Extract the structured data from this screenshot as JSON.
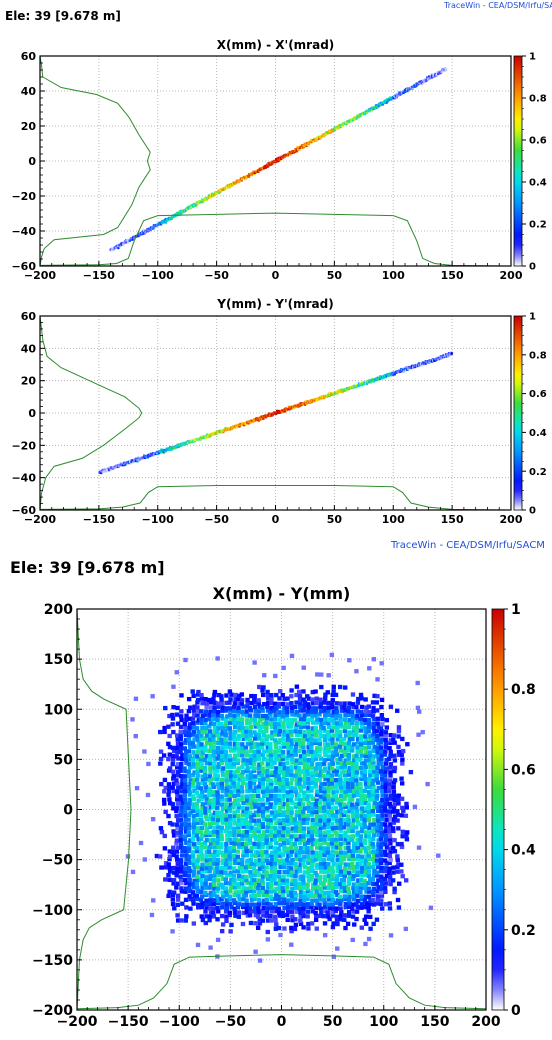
{
  "header": {
    "watermark_top": "TraceWin - CEA/DSM/Irfu/SACM",
    "element_top": "Ele: 39 [9.678 m]",
    "watermark_mid": "TraceWin - CEA/DSM/Irfu/SACM",
    "element_bottom": "Ele: 39 [9.678 m]"
  },
  "colors": {
    "hist_line": "#2e8b2e",
    "grid": "#b8b8b8",
    "watermark": "#1e4fd8"
  },
  "colorbar_ticks": [
    "0",
    "0.2",
    "0.4",
    "0.6",
    "0.8",
    "1"
  ],
  "chart_data": [
    {
      "type": "heatmap",
      "title": "X(mm) - X'(mrad)",
      "xlim": [
        -200,
        200
      ],
      "ylim": [
        -60,
        60
      ],
      "x_ticks": [
        -200,
        -150,
        -100,
        -50,
        0,
        50,
        100,
        150,
        200
      ],
      "y_ticks": [
        -60,
        -40,
        -20,
        0,
        20,
        40,
        60
      ],
      "colorbar_range": [
        0,
        1
      ],
      "grid": true,
      "line": {
        "x_start": -140,
        "x_end": 145,
        "slope": 0.364
      },
      "profile_x": [
        [
          -200,
          0.01
        ],
        [
          -150,
          0.02
        ],
        [
          -135,
          0.04
        ],
        [
          -125,
          0.12
        ],
        [
          -120,
          0.4
        ],
        [
          -112,
          0.72
        ],
        [
          -100,
          0.8
        ],
        [
          -50,
          0.82
        ],
        [
          0,
          0.84
        ],
        [
          50,
          0.82
        ],
        [
          100,
          0.8
        ],
        [
          112,
          0.72
        ],
        [
          120,
          0.4
        ],
        [
          125,
          0.12
        ],
        [
          135,
          0.04
        ],
        [
          150,
          0.01
        ],
        [
          200,
          0
        ]
      ],
      "profile_y": [
        [
          -60,
          0
        ],
        [
          -55,
          0.01
        ],
        [
          -50,
          0.03
        ],
        [
          -45,
          0.1
        ],
        [
          -42,
          0.45
        ],
        [
          -38,
          0.55
        ],
        [
          -25,
          0.65
        ],
        [
          -15,
          0.7
        ],
        [
          -5,
          0.78
        ],
        [
          0,
          0.76
        ],
        [
          5,
          0.78
        ],
        [
          15,
          0.7
        ],
        [
          25,
          0.63
        ],
        [
          33,
          0.55
        ],
        [
          38,
          0.4
        ],
        [
          42,
          0.15
        ],
        [
          48,
          0.02
        ],
        [
          55,
          0.01
        ],
        [
          60,
          0
        ]
      ]
    },
    {
      "type": "heatmap",
      "title": "Y(mm) - Y'(mrad)",
      "xlim": [
        -200,
        200
      ],
      "ylim": [
        -60,
        60
      ],
      "x_ticks": [
        -200,
        -150,
        -100,
        -50,
        0,
        50,
        100,
        150,
        200
      ],
      "y_ticks": [
        -60,
        -40,
        -20,
        0,
        20,
        40,
        60
      ],
      "colorbar_range": [
        0,
        1
      ],
      "grid": true,
      "line": {
        "x_start": -150,
        "x_end": 150,
        "slope": 0.245
      },
      "profile_x": [
        [
          -200,
          0.01
        ],
        [
          -150,
          0.02
        ],
        [
          -130,
          0.05
        ],
        [
          -115,
          0.12
        ],
        [
          -108,
          0.3
        ],
        [
          -100,
          0.4
        ],
        [
          -50,
          0.42
        ],
        [
          0,
          0.42
        ],
        [
          50,
          0.42
        ],
        [
          100,
          0.4
        ],
        [
          108,
          0.3
        ],
        [
          115,
          0.12
        ],
        [
          130,
          0.05
        ],
        [
          150,
          0.01
        ],
        [
          200,
          0
        ]
      ],
      "profile_y": [
        [
          -60,
          0
        ],
        [
          -50,
          0.01
        ],
        [
          -40,
          0.04
        ],
        [
          -33,
          0.1
        ],
        [
          -28,
          0.3
        ],
        [
          -20,
          0.45
        ],
        [
          -10,
          0.6
        ],
        [
          -3,
          0.7
        ],
        [
          0,
          0.72
        ],
        [
          3,
          0.7
        ],
        [
          10,
          0.6
        ],
        [
          18,
          0.4
        ],
        [
          28,
          0.15
        ],
        [
          35,
          0.05
        ],
        [
          45,
          0.02
        ],
        [
          60,
          0
        ]
      ]
    },
    {
      "type": "heatmap",
      "title": "X(mm) - Y(mm)",
      "xlim": [
        -200,
        200
      ],
      "ylim": [
        -200,
        200
      ],
      "x_ticks": [
        -200,
        -150,
        -100,
        -50,
        0,
        50,
        100,
        150,
        200
      ],
      "y_ticks": [
        -200,
        -150,
        -100,
        -50,
        0,
        50,
        100,
        150,
        200
      ],
      "colorbar_range": [
        0,
        1
      ],
      "grid": true,
      "beam_halfwidth_mm": 105,
      "profile_x": [
        [
          -200,
          0.01
        ],
        [
          -160,
          0.02
        ],
        [
          -140,
          0.04
        ],
        [
          -125,
          0.1
        ],
        [
          -112,
          0.22
        ],
        [
          -105,
          0.38
        ],
        [
          -90,
          0.44
        ],
        [
          -50,
          0.45
        ],
        [
          0,
          0.46
        ],
        [
          50,
          0.45
        ],
        [
          90,
          0.44
        ],
        [
          105,
          0.38
        ],
        [
          112,
          0.22
        ],
        [
          125,
          0.1
        ],
        [
          140,
          0.04
        ],
        [
          160,
          0.02
        ],
        [
          200,
          0.01
        ]
      ],
      "profile_y": [
        [
          -200,
          0
        ],
        [
          -150,
          0.02
        ],
        [
          -130,
          0.05
        ],
        [
          -118,
          0.1
        ],
        [
          -110,
          0.2
        ],
        [
          -100,
          0.38
        ],
        [
          -50,
          0.42
        ],
        [
          0,
          0.44
        ],
        [
          50,
          0.42
        ],
        [
          100,
          0.4
        ],
        [
          110,
          0.22
        ],
        [
          118,
          0.12
        ],
        [
          130,
          0.05
        ],
        [
          150,
          0.02
        ],
        [
          200,
          0
        ]
      ]
    }
  ]
}
